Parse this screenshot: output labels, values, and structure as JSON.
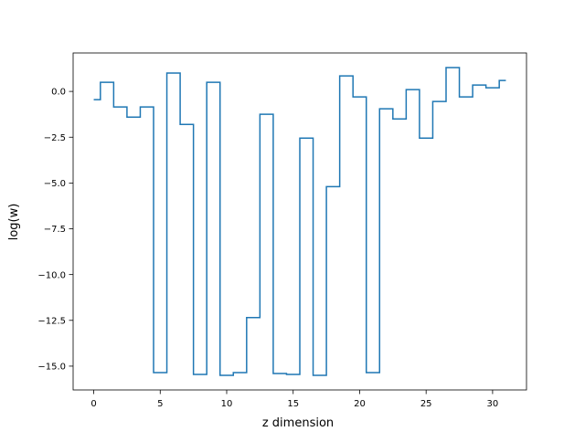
{
  "chart_data": {
    "type": "line",
    "step": "mid",
    "title": "",
    "xlabel": "z dimension",
    "ylabel": "log(w)",
    "xlim": [
      -1.55,
      32.55
    ],
    "ylim": [
      -16.3,
      2.1
    ],
    "grid": false,
    "legend": "none",
    "x_ticks": [
      0,
      5,
      10,
      15,
      20,
      25,
      30
    ],
    "y_ticks": [
      0.0,
      -2.5,
      -5.0,
      -7.5,
      -10.0,
      -12.5,
      -15.0
    ],
    "x_tick_labels": [
      "0",
      "5",
      "10",
      "15",
      "20",
      "25",
      "30"
    ],
    "y_tick_labels": [
      "0.0",
      "−2.5",
      "−5.0",
      "−7.5",
      "−10.0",
      "−12.5",
      "−15.0"
    ],
    "series": [
      {
        "color": "#1f77b4",
        "x": [
          0,
          1,
          2,
          3,
          4,
          5,
          6,
          7,
          8,
          9,
          10,
          11,
          12,
          13,
          14,
          15,
          16,
          17,
          18,
          19,
          20,
          21,
          22,
          23,
          24,
          25,
          26,
          27,
          28,
          29,
          30,
          31
        ],
        "values": [
          -0.45,
          0.5,
          -0.85,
          -1.4,
          -0.85,
          -15.35,
          1.0,
          -1.8,
          -15.45,
          0.5,
          -15.5,
          -15.35,
          -12.35,
          -1.25,
          -15.4,
          -15.45,
          -2.55,
          -15.5,
          -5.2,
          0.85,
          -0.3,
          -15.35,
          -0.95,
          -1.5,
          0.1,
          -2.55,
          -0.55,
          1.3,
          -0.3,
          0.35,
          0.2,
          0.6
        ]
      }
    ]
  }
}
